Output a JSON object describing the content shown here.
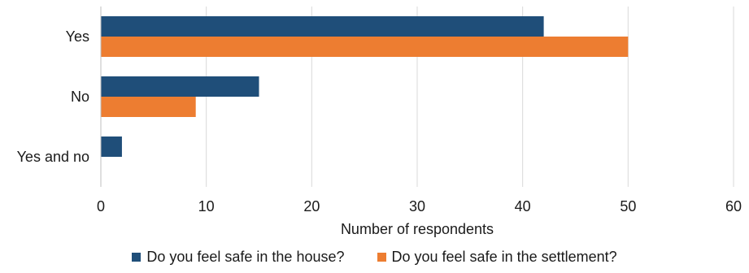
{
  "chart_data": {
    "type": "bar",
    "orientation": "horizontal",
    "categories": [
      "Yes",
      "No",
      "Yes and no"
    ],
    "series": [
      {
        "name": "Do you feel safe in the house?",
        "values": [
          42,
          15,
          2
        ],
        "color": "#1f4e79"
      },
      {
        "name": "Do you feel safe in the settlement?",
        "values": [
          50,
          9,
          0
        ],
        "color": "#ed7d31"
      }
    ],
    "title": "",
    "xlabel": "Number of respondents",
    "ylabel": "",
    "xlim": [
      0,
      60
    ],
    "xticks": [
      0,
      10,
      20,
      30,
      40,
      50,
      60
    ],
    "grid": true,
    "legend_position": "bottom"
  }
}
